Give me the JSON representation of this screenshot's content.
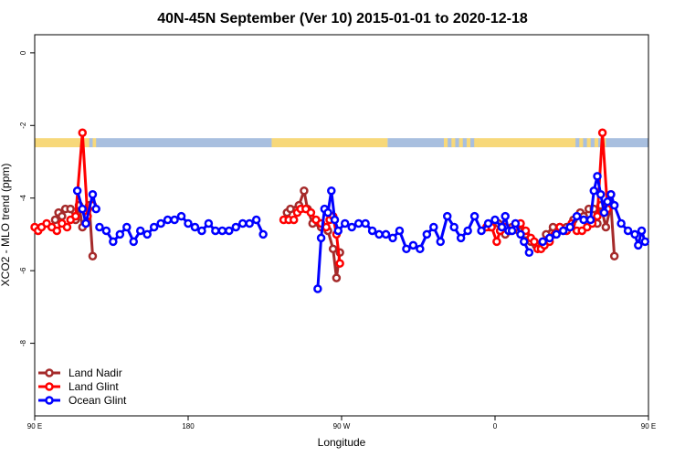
{
  "chart_data": {
    "type": "line",
    "title": "40N-45N September (Ver 10)   2015-01-01 to 2020-12-18",
    "xlabel": "Longitude",
    "ylabel": "XCO2 - MLO trend (ppm)",
    "xlim": [
      90,
      450
    ],
    "ylim": [
      -10,
      0.5
    ],
    "x_ticks": [
      {
        "value": 90,
        "label": "90 E"
      },
      {
        "value": 180,
        "label": "180"
      },
      {
        "value": 270,
        "label": "90 W"
      },
      {
        "value": 360,
        "label": "0"
      },
      {
        "value": 450,
        "label": "90 E"
      }
    ],
    "y_ticks": [
      {
        "value": 0,
        "label": "0"
      },
      {
        "value": -2,
        "label": "-2"
      },
      {
        "value": -4,
        "label": "-4"
      },
      {
        "value": -6,
        "label": "-6"
      },
      {
        "value": -8,
        "label": "-8"
      }
    ],
    "grid": false,
    "legend_position": "bottom-left",
    "land_ocean_band": {
      "y_range": [
        -2.35,
        -2.6
      ],
      "land_color": "#f7d87a",
      "ocean_color": "#a8bfdf",
      "segments": [
        {
          "start": 90,
          "end": 120,
          "type": "land"
        },
        {
          "start": 120,
          "end": 126,
          "type": "mixed"
        },
        {
          "start": 126,
          "end": 229,
          "type": "ocean"
        },
        {
          "start": 229,
          "end": 297,
          "type": "land"
        },
        {
          "start": 297,
          "end": 330,
          "type": "ocean"
        },
        {
          "start": 330,
          "end": 350,
          "type": "mixed"
        },
        {
          "start": 350,
          "end": 405,
          "type": "land"
        },
        {
          "start": 405,
          "end": 425,
          "type": "mixed"
        },
        {
          "start": 425,
          "end": 450,
          "type": "ocean"
        }
      ]
    },
    "series": [
      {
        "name": "Land Nadir",
        "color": "#a52a2a",
        "segments": [
          [
            [
              102,
              -4.6
            ],
            [
              104,
              -4.4
            ],
            [
              106,
              -4.5
            ],
            [
              108,
              -4.3
            ],
            [
              111,
              -4.3
            ],
            [
              114,
              -4.6
            ],
            [
              116,
              -4.2
            ],
            [
              118,
              -4.8
            ],
            [
              122,
              -4.2
            ],
            [
              124,
              -5.6
            ]
          ],
          [
            [
              238,
              -4.4
            ],
            [
              240,
              -4.3
            ],
            [
              245,
              -4.2
            ],
            [
              248,
              -3.8
            ],
            [
              250,
              -4.3
            ],
            [
              253,
              -4.7
            ],
            [
              258,
              -4.8
            ],
            [
              262,
              -4.9
            ],
            [
              265,
              -5.4
            ],
            [
              267,
              -6.2
            ],
            [
              269,
              -5.5
            ]
          ],
          [
            [
              357,
              -4.8
            ],
            [
              362,
              -4.7
            ],
            [
              366,
              -5.0
            ],
            [
              370,
              -4.8
            ],
            [
              374,
              -4.9
            ],
            [
              378,
              -5.0
            ],
            [
              381,
              -5.2
            ],
            [
              384,
              -5.3
            ],
            [
              388,
              -5.2
            ],
            [
              390,
              -5.0
            ],
            [
              394,
              -4.8
            ],
            [
              398,
              -4.8
            ],
            [
              402,
              -4.8
            ],
            [
              406,
              -4.6
            ],
            [
              410,
              -4.4
            ],
            [
              412,
              -4.5
            ],
            [
              415,
              -4.3
            ],
            [
              418,
              -4.3
            ],
            [
              420,
              -4.7
            ],
            [
              422,
              -4.2
            ],
            [
              425,
              -4.8
            ],
            [
              428,
              -4.2
            ],
            [
              430,
              -5.6
            ]
          ]
        ]
      },
      {
        "name": "Land Glint",
        "color": "#ff0000",
        "segments": [
          [
            [
              90,
              -4.8
            ],
            [
              92,
              -4.9
            ],
            [
              94,
              -4.8
            ],
            [
              97,
              -4.7
            ],
            [
              100,
              -4.8
            ],
            [
              103,
              -4.9
            ],
            [
              106,
              -4.7
            ],
            [
              109,
              -4.8
            ],
            [
              111,
              -4.6
            ],
            [
              114,
              -4.5
            ],
            [
              118,
              -2.2
            ],
            [
              121,
              -4.5
            ],
            [
              124,
              -4.2
            ]
          ],
          [
            [
              236,
              -4.6
            ],
            [
              239,
              -4.6
            ],
            [
              242,
              -4.6
            ],
            [
              244,
              -4.4
            ],
            [
              246,
              -4.3
            ],
            [
              249,
              -4.3
            ],
            [
              252,
              -4.4
            ],
            [
              255,
              -4.6
            ],
            [
              258,
              -4.7
            ],
            [
              261,
              -4.8
            ],
            [
              263,
              -4.6
            ],
            [
              265,
              -4.5
            ],
            [
              267,
              -5.0
            ],
            [
              269,
              -5.8
            ]
          ],
          [
            [
              355,
              -4.8
            ],
            [
              358,
              -4.8
            ],
            [
              361,
              -5.2
            ],
            [
              363,
              -4.9
            ],
            [
              366,
              -4.8
            ],
            [
              369,
              -4.9
            ],
            [
              372,
              -4.8
            ],
            [
              375,
              -4.7
            ],
            [
              378,
              -4.9
            ],
            [
              381,
              -5.1
            ],
            [
              383,
              -5.2
            ],
            [
              385,
              -5.4
            ],
            [
              387,
              -5.4
            ],
            [
              389,
              -5.3
            ],
            [
              392,
              -5.2
            ],
            [
              395,
              -5.0
            ],
            [
              398,
              -4.8
            ],
            [
              402,
              -4.9
            ],
            [
              405,
              -4.7
            ],
            [
              408,
              -4.9
            ],
            [
              411,
              -4.9
            ],
            [
              414,
              -4.8
            ],
            [
              417,
              -4.7
            ],
            [
              420,
              -4.5
            ],
            [
              423,
              -2.2
            ],
            [
              426,
              -4.3
            ],
            [
              428,
              -3.9
            ]
          ]
        ]
      },
      {
        "name": "Ocean Glint",
        "color": "#0000ff",
        "segments": [
          [
            [
              115,
              -3.8
            ],
            [
              118,
              -4.3
            ],
            [
              120,
              -4.7
            ],
            [
              124,
              -3.9
            ],
            [
              126,
              -4.3
            ]
          ],
          [
            [
              128,
              -4.8
            ],
            [
              132,
              -4.9
            ],
            [
              136,
              -5.2
            ],
            [
              140,
              -5.0
            ],
            [
              144,
              -4.8
            ],
            [
              148,
              -5.2
            ],
            [
              152,
              -4.9
            ],
            [
              156,
              -5.0
            ],
            [
              160,
              -4.8
            ],
            [
              164,
              -4.7
            ],
            [
              168,
              -4.6
            ],
            [
              172,
              -4.6
            ],
            [
              176,
              -4.5
            ],
            [
              180,
              -4.7
            ],
            [
              184,
              -4.8
            ],
            [
              188,
              -4.9
            ],
            [
              192,
              -4.7
            ],
            [
              196,
              -4.9
            ],
            [
              200,
              -4.9
            ],
            [
              204,
              -4.9
            ],
            [
              208,
              -4.8
            ],
            [
              212,
              -4.7
            ],
            [
              216,
              -4.7
            ],
            [
              220,
              -4.6
            ],
            [
              224,
              -5.0
            ]
          ],
          [
            [
              256,
              -6.5
            ],
            [
              258,
              -5.1
            ],
            [
              260,
              -4.3
            ],
            [
              262,
              -4.4
            ],
            [
              264,
              -3.8
            ],
            [
              266,
              -4.6
            ],
            [
              268,
              -4.9
            ],
            [
              272,
              -4.7
            ],
            [
              276,
              -4.8
            ],
            [
              280,
              -4.7
            ],
            [
              284,
              -4.7
            ],
            [
              288,
              -4.9
            ],
            [
              292,
              -5.0
            ],
            [
              296,
              -5.0
            ],
            [
              300,
              -5.1
            ],
            [
              304,
              -4.9
            ],
            [
              308,
              -5.4
            ],
            [
              312,
              -5.3
            ],
            [
              316,
              -5.4
            ],
            [
              320,
              -5.0
            ],
            [
              324,
              -4.8
            ],
            [
              328,
              -5.2
            ],
            [
              332,
              -4.5
            ],
            [
              336,
              -4.8
            ],
            [
              340,
              -5.1
            ],
            [
              344,
              -4.9
            ],
            [
              348,
              -4.5
            ],
            [
              352,
              -4.9
            ],
            [
              356,
              -4.7
            ],
            [
              360,
              -4.6
            ],
            [
              364,
              -4.8
            ],
            [
              366,
              -4.5
            ],
            [
              368,
              -4.9
            ],
            [
              370,
              -4.9
            ],
            [
              372,
              -4.7
            ],
            [
              375,
              -5.0
            ],
            [
              377,
              -5.2
            ],
            [
              380,
              -5.5
            ]
          ],
          [
            [
              388,
              -5.2
            ],
            [
              392,
              -5.1
            ],
            [
              396,
              -5.0
            ],
            [
              400,
              -4.9
            ],
            [
              404,
              -4.8
            ],
            [
              408,
              -4.5
            ],
            [
              412,
              -4.6
            ],
            [
              416,
              -4.6
            ],
            [
              418,
              -3.8
            ],
            [
              420,
              -3.4
            ],
            [
              422,
              -3.9
            ],
            [
              424,
              -4.4
            ],
            [
              426,
              -4.1
            ],
            [
              428,
              -3.9
            ],
            [
              430,
              -4.2
            ],
            [
              434,
              -4.7
            ],
            [
              438,
              -4.9
            ],
            [
              442,
              -5.0
            ],
            [
              444,
              -5.3
            ],
            [
              446,
              -4.9
            ],
            [
              448,
              -5.2
            ]
          ]
        ]
      }
    ]
  }
}
